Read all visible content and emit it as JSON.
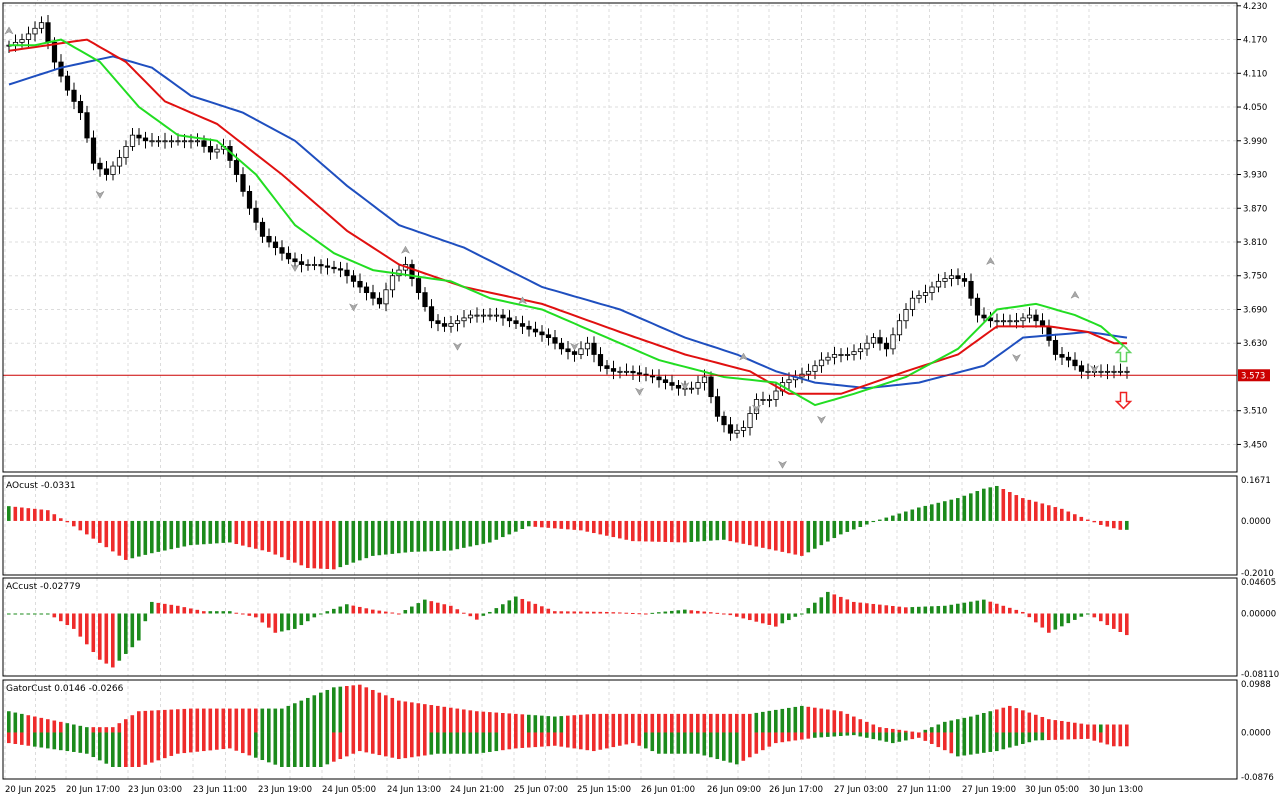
{
  "chart_data": {
    "type": "candlestick",
    "colors": {
      "grid": "#dcdcdc",
      "frame": "#000000",
      "candle_bull": "#ffffff",
      "candle_bear": "#000000",
      "jaw": "#1f4fbf",
      "teeth": "#e01010",
      "lips": "#22dd22",
      "hist_up": "#1c8a1c",
      "hist_down": "#ee2b2b",
      "price_line": "#cc0000",
      "fractal": "#a8a8a8",
      "arrow_up": "#5fd35f",
      "arrow_down": "#ee2222"
    },
    "current_price": {
      "value": 3.573,
      "label": "3.573"
    },
    "price_axis": {
      "ylim": [
        3.401,
        4.235
      ],
      "ticks": [
        "4.230",
        "4.170",
        "4.110",
        "4.050",
        "3.990",
        "3.930",
        "3.870",
        "3.810",
        "3.750",
        "3.690",
        "3.630",
        "3.510",
        "3.450"
      ]
    },
    "x_labels": [
      "20 Jun 2025",
      "20 Jun 17:00",
      "23 Jun 03:00",
      "23 Jun 11:00",
      "23 Jun 19:00",
      "24 Jun 05:00",
      "24 Jun 13:00",
      "24 Jun 21:00",
      "25 Jun 07:00",
      "25 Jun 15:00",
      "26 Jun 01:00",
      "26 Jun 09:00",
      "26 Jun 17:00",
      "27 Jun 03:00",
      "27 Jun 11:00",
      "27 Jun 19:00",
      "30 Jun 05:00",
      "30 Jun 13:00"
    ],
    "price_anchors": [
      [
        0,
        4.16
      ],
      [
        2,
        4.17
      ],
      [
        5,
        4.2
      ],
      [
        7,
        4.13
      ],
      [
        9,
        4.08
      ],
      [
        11,
        4.04
      ],
      [
        13,
        3.95
      ],
      [
        15,
        3.93
      ],
      [
        17,
        3.96
      ],
      [
        19,
        4.0
      ],
      [
        21,
        3.99
      ],
      [
        25,
        3.99
      ],
      [
        29,
        3.99
      ],
      [
        31,
        3.97
      ],
      [
        33,
        3.98
      ],
      [
        35,
        3.93
      ],
      [
        37,
        3.87
      ],
      [
        39,
        3.82
      ],
      [
        41,
        3.8
      ],
      [
        43,
        3.78
      ],
      [
        45,
        3.77
      ],
      [
        47,
        3.77
      ],
      [
        51,
        3.76
      ],
      [
        55,
        3.72
      ],
      [
        57,
        3.7
      ],
      [
        59,
        3.75
      ],
      [
        61,
        3.77
      ],
      [
        63,
        3.72
      ],
      [
        65,
        3.67
      ],
      [
        67,
        3.66
      ],
      [
        69,
        3.67
      ],
      [
        71,
        3.68
      ],
      [
        75,
        3.68
      ],
      [
        77,
        3.67
      ],
      [
        79,
        3.66
      ],
      [
        81,
        3.65
      ],
      [
        83,
        3.64
      ],
      [
        85,
        3.62
      ],
      [
        87,
        3.61
      ],
      [
        89,
        3.63
      ],
      [
        91,
        3.59
      ],
      [
        93,
        3.58
      ],
      [
        95,
        3.58
      ],
      [
        99,
        3.57
      ],
      [
        101,
        3.56
      ],
      [
        103,
        3.55
      ],
      [
        105,
        3.55
      ],
      [
        107,
        3.57
      ],
      [
        109,
        3.5
      ],
      [
        111,
        3.47
      ],
      [
        113,
        3.48
      ],
      [
        115,
        3.53
      ],
      [
        117,
        3.53
      ],
      [
        119,
        3.56
      ],
      [
        121,
        3.57
      ],
      [
        123,
        3.58
      ],
      [
        125,
        3.6
      ],
      [
        127,
        3.61
      ],
      [
        129,
        3.61
      ],
      [
        131,
        3.62
      ],
      [
        133,
        3.64
      ],
      [
        135,
        3.62
      ],
      [
        137,
        3.67
      ],
      [
        139,
        3.71
      ],
      [
        141,
        3.72
      ],
      [
        143,
        3.74
      ],
      [
        145,
        3.75
      ],
      [
        147,
        3.74
      ],
      [
        149,
        3.68
      ],
      [
        151,
        3.67
      ],
      [
        153,
        3.67
      ],
      [
        155,
        3.67
      ],
      [
        157,
        3.68
      ],
      [
        159,
        3.66
      ],
      [
        161,
        3.61
      ],
      [
        163,
        3.6
      ],
      [
        165,
        3.58
      ]
    ],
    "jaw_anchors": [
      [
        0,
        4.09
      ],
      [
        8,
        4.12
      ],
      [
        16,
        4.14
      ],
      [
        22,
        4.12
      ],
      [
        28,
        4.07
      ],
      [
        36,
        4.04
      ],
      [
        44,
        3.99
      ],
      [
        52,
        3.91
      ],
      [
        60,
        3.84
      ],
      [
        70,
        3.8
      ],
      [
        82,
        3.73
      ],
      [
        94,
        3.69
      ],
      [
        104,
        3.64
      ],
      [
        112,
        3.61
      ],
      [
        118,
        3.58
      ],
      [
        124,
        3.56
      ],
      [
        132,
        3.55
      ],
      [
        140,
        3.56
      ],
      [
        150,
        3.59
      ],
      [
        156,
        3.64
      ],
      [
        166,
        3.65
      ],
      [
        172,
        3.64
      ]
    ],
    "teeth_anchors": [
      [
        0,
        4.15
      ],
      [
        6,
        4.16
      ],
      [
        12,
        4.17
      ],
      [
        18,
        4.13
      ],
      [
        24,
        4.06
      ],
      [
        32,
        4.02
      ],
      [
        42,
        3.93
      ],
      [
        52,
        3.83
      ],
      [
        60,
        3.77
      ],
      [
        70,
        3.73
      ],
      [
        82,
        3.7
      ],
      [
        94,
        3.65
      ],
      [
        104,
        3.61
      ],
      [
        114,
        3.58
      ],
      [
        120,
        3.54
      ],
      [
        128,
        3.54
      ],
      [
        138,
        3.58
      ],
      [
        146,
        3.61
      ],
      [
        152,
        3.66
      ],
      [
        160,
        3.66
      ],
      [
        166,
        3.65
      ],
      [
        170,
        3.63
      ]
    ],
    "lips_anchors": [
      [
        0,
        4.16
      ],
      [
        4,
        4.16
      ],
      [
        8,
        4.17
      ],
      [
        14,
        4.13
      ],
      [
        20,
        4.05
      ],
      [
        26,
        4.0
      ],
      [
        32,
        3.99
      ],
      [
        38,
        3.93
      ],
      [
        44,
        3.84
      ],
      [
        50,
        3.79
      ],
      [
        56,
        3.76
      ],
      [
        62,
        3.75
      ],
      [
        68,
        3.74
      ],
      [
        74,
        3.71
      ],
      [
        82,
        3.69
      ],
      [
        92,
        3.64
      ],
      [
        100,
        3.6
      ],
      [
        110,
        3.57
      ],
      [
        118,
        3.56
      ],
      [
        124,
        3.52
      ],
      [
        130,
        3.54
      ],
      [
        138,
        3.57
      ],
      [
        146,
        3.62
      ],
      [
        152,
        3.69
      ],
      [
        158,
        3.7
      ],
      [
        164,
        3.68
      ],
      [
        168,
        3.66
      ],
      [
        172,
        3.62
      ]
    ],
    "fractals": [
      [
        0,
        4.18,
        "up"
      ],
      [
        5,
        4.24,
        "up"
      ],
      [
        14,
        3.9,
        "down"
      ],
      [
        44,
        3.77,
        "down"
      ],
      [
        53,
        3.7,
        "down"
      ],
      [
        61,
        3.79,
        "up"
      ],
      [
        69,
        3.63,
        "down"
      ],
      [
        79,
        3.7,
        "up"
      ],
      [
        87,
        3.63,
        "down"
      ],
      [
        97,
        3.55,
        "down"
      ],
      [
        104,
        3.56,
        "down"
      ],
      [
        113,
        3.6,
        "up"
      ],
      [
        115,
        3.52,
        "down"
      ],
      [
        119,
        3.42,
        "down"
      ],
      [
        125,
        3.5,
        "down"
      ],
      [
        151,
        3.77,
        "up"
      ],
      [
        155,
        3.61,
        "down"
      ],
      [
        164,
        3.71,
        "up"
      ],
      [
        167,
        3.59,
        "down"
      ]
    ],
    "signal_arrows": [
      {
        "type": "up",
        "bar": 171,
        "price": 3.61
      },
      {
        "type": "down",
        "bar": 171,
        "price": 3.53
      }
    ],
    "panels": [
      {
        "name": "AOcust",
        "title": "AOcust -0.0331",
        "ylim": [
          -0.201,
          0.1671
        ],
        "ticks": [
          "0.1671",
          "0.0000",
          "-0.2010"
        ],
        "anchors": [
          [
            0,
            0.055
          ],
          [
            6,
            0.04
          ],
          [
            12,
            -0.05
          ],
          [
            18,
            -0.145
          ],
          [
            22,
            -0.12
          ],
          [
            28,
            -0.09
          ],
          [
            34,
            -0.08
          ],
          [
            40,
            -0.115
          ],
          [
            46,
            -0.175
          ],
          [
            50,
            -0.18
          ],
          [
            56,
            -0.13
          ],
          [
            62,
            -0.115
          ],
          [
            68,
            -0.11
          ],
          [
            74,
            -0.08
          ],
          [
            80,
            -0.02
          ],
          [
            88,
            -0.035
          ],
          [
            96,
            -0.075
          ],
          [
            104,
            -0.08
          ],
          [
            110,
            -0.07
          ],
          [
            116,
            -0.1
          ],
          [
            122,
            -0.13
          ],
          [
            128,
            -0.05
          ],
          [
            134,
            0.005
          ],
          [
            140,
            0.05
          ],
          [
            146,
            0.085
          ],
          [
            150,
            0.12
          ],
          [
            152,
            0.13
          ],
          [
            156,
            0.085
          ],
          [
            162,
            0.045
          ],
          [
            168,
            -0.015
          ],
          [
            171,
            -0.033
          ]
        ]
      },
      {
        "name": "ACcust",
        "title": "ACcust -0.02779",
        "ylim": [
          -0.0811,
          0.04605
        ],
        "ticks": [
          "0.04605",
          "0.00000",
          "-0.08110"
        ],
        "anchors": [
          [
            0,
            0.0
          ],
          [
            6,
            0.0
          ],
          [
            10,
            -0.02
          ],
          [
            14,
            -0.06
          ],
          [
            16,
            -0.07
          ],
          [
            20,
            -0.035
          ],
          [
            22,
            0.015
          ],
          [
            26,
            0.01
          ],
          [
            30,
            0.003
          ],
          [
            34,
            0.003
          ],
          [
            38,
            -0.005
          ],
          [
            41,
            -0.025
          ],
          [
            44,
            -0.02
          ],
          [
            48,
            0.0
          ],
          [
            52,
            0.012
          ],
          [
            56,
            0.005
          ],
          [
            60,
            0.0
          ],
          [
            64,
            0.018
          ],
          [
            68,
            0.01
          ],
          [
            72,
            -0.008
          ],
          [
            78,
            0.022
          ],
          [
            84,
            0.003
          ],
          [
            92,
            0.002
          ],
          [
            98,
            0.0
          ],
          [
            104,
            0.005
          ],
          [
            110,
            0.0
          ],
          [
            118,
            -0.017
          ],
          [
            122,
            0.0
          ],
          [
            126,
            0.028
          ],
          [
            130,
            0.015
          ],
          [
            138,
            0.008
          ],
          [
            144,
            0.01
          ],
          [
            150,
            0.018
          ],
          [
            156,
            0.002
          ],
          [
            160,
            -0.025
          ],
          [
            166,
            0.0
          ],
          [
            170,
            -0.02
          ],
          [
            172,
            -0.028
          ]
        ]
      },
      {
        "name": "GatorCust",
        "title": "GatorCust 0.0146 -0.0266",
        "ylim": [
          -0.0876,
          0.0988
        ],
        "ticks": [
          "0.0988",
          "0.0000",
          "-0.0876"
        ],
        "upper_anchors": [
          [
            0,
            0.04
          ],
          [
            6,
            0.025
          ],
          [
            12,
            0.01
          ],
          [
            16,
            0.01
          ],
          [
            20,
            0.04
          ],
          [
            28,
            0.045
          ],
          [
            34,
            0.045
          ],
          [
            42,
            0.045
          ],
          [
            50,
            0.085
          ],
          [
            54,
            0.09
          ],
          [
            60,
            0.06
          ],
          [
            66,
            0.05
          ],
          [
            72,
            0.04
          ],
          [
            78,
            0.035
          ],
          [
            84,
            0.03
          ],
          [
            90,
            0.035
          ],
          [
            96,
            0.035
          ],
          [
            102,
            0.035
          ],
          [
            108,
            0.035
          ],
          [
            114,
            0.035
          ],
          [
            122,
            0.05
          ],
          [
            128,
            0.04
          ],
          [
            134,
            0.01
          ],
          [
            140,
            0.0
          ],
          [
            144,
            0.02
          ],
          [
            148,
            0.03
          ],
          [
            154,
            0.05
          ],
          [
            160,
            0.025
          ],
          [
            166,
            0.015
          ],
          [
            172,
            0.015
          ]
        ],
        "lower_anchors": [
          [
            0,
            -0.02
          ],
          [
            6,
            -0.03
          ],
          [
            12,
            -0.04
          ],
          [
            16,
            -0.065
          ],
          [
            20,
            -0.065
          ],
          [
            26,
            -0.04
          ],
          [
            34,
            -0.03
          ],
          [
            42,
            -0.065
          ],
          [
            48,
            -0.065
          ],
          [
            54,
            -0.035
          ],
          [
            60,
            -0.05
          ],
          [
            66,
            -0.04
          ],
          [
            72,
            -0.04
          ],
          [
            78,
            -0.03
          ],
          [
            84,
            -0.025
          ],
          [
            90,
            -0.035
          ],
          [
            96,
            -0.02
          ],
          [
            100,
            -0.04
          ],
          [
            106,
            -0.04
          ],
          [
            112,
            -0.06
          ],
          [
            118,
            -0.02
          ],
          [
            124,
            -0.01
          ],
          [
            130,
            -0.005
          ],
          [
            136,
            -0.02
          ],
          [
            140,
            -0.01
          ],
          [
            146,
            -0.045
          ],
          [
            152,
            -0.035
          ],
          [
            158,
            -0.015
          ],
          [
            166,
            -0.012
          ],
          [
            170,
            -0.026
          ]
        ],
        "upper_colors": "GGGRRRRRRGGGGRRRRRRRRRRRRRRRRRRRRRRRRRRGGGGGGGGGGGGGRRRRRRRRRRRRRRRRRRRRRRRRRRRRGGGGGGRRRRRRRRRRRRRRRRRRRRRRRRRRRRRGGGGGGGGRRRRRRRRRRRRRRRRRRGGGGGGGGGGGRRRRRRRRRRRRRRRRG",
        "lower_colors": "RRRRGGGGGGGGGGGGGGRRRRRRRRRRRRRRRRRRRRGGGGGGGGGGGGRRRRRRRRRRRRRRRGGGGGGGGGGGRRRRRRRRRRRRRRRRRRRRRRGGGGGGGGGGGGGGGRRRRRRRRRRRGGGGGGGGGGGGGGGRRRRRRRGGGGGGGGGGGGGGRRRRRRRRRRRRRRR"
      }
    ]
  }
}
